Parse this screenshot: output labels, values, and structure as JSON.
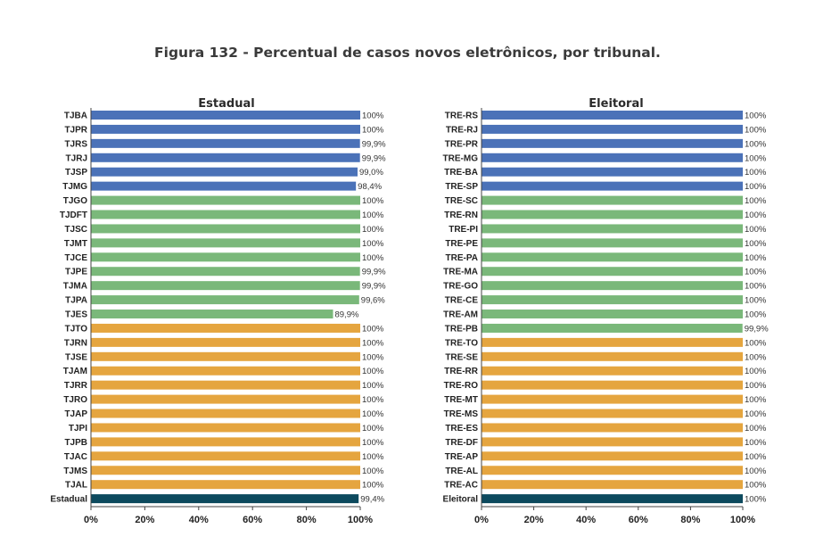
{
  "figure_title": "Figura 132 - Percentual de casos novos eletrônicos, por tribunal.",
  "colors": {
    "blue": "#4b72b8",
    "green": "#7ab87a",
    "orange": "#e5a53f",
    "navy": "#0d4a5e"
  },
  "chart_data": [
    {
      "type": "bar",
      "orientation": "horizontal",
      "title": "Estadual",
      "xlim": [
        0,
        100
      ],
      "xticks": [
        "0%",
        "20%",
        "40%",
        "60%",
        "80%",
        "100%"
      ],
      "grid": false,
      "categories": [
        "TJBA",
        "TJPR",
        "TJRS",
        "TJRJ",
        "TJSP",
        "TJMG",
        "TJGO",
        "TJDFT",
        "TJSC",
        "TJMT",
        "TJCE",
        "TJPE",
        "TJMA",
        "TJPA",
        "TJES",
        "TJTO",
        "TJRN",
        "TJSE",
        "TJAM",
        "TJRR",
        "TJRO",
        "TJAP",
        "TJPI",
        "TJPB",
        "TJAC",
        "TJMS",
        "TJAL",
        "Estadual"
      ],
      "values": [
        100,
        100,
        99.9,
        99.9,
        99.0,
        98.4,
        100,
        100,
        100,
        100,
        100,
        99.9,
        99.9,
        99.6,
        89.9,
        100,
        100,
        100,
        100,
        100,
        100,
        100,
        100,
        100,
        100,
        100,
        100,
        99.4
      ],
      "labels": [
        "100%",
        "100%",
        "99,9%",
        "99,9%",
        "99,0%",
        "98,4%",
        "100%",
        "100%",
        "100%",
        "100%",
        "100%",
        "99,9%",
        "99,9%",
        "99,6%",
        "89,9%",
        "100%",
        "100%",
        "100%",
        "100%",
        "100%",
        "100%",
        "100%",
        "100%",
        "100%",
        "100%",
        "100%",
        "100%",
        "99,4%"
      ],
      "colors": [
        "blue",
        "blue",
        "blue",
        "blue",
        "blue",
        "blue",
        "green",
        "green",
        "green",
        "green",
        "green",
        "green",
        "green",
        "green",
        "green",
        "orange",
        "orange",
        "orange",
        "orange",
        "orange",
        "orange",
        "orange",
        "orange",
        "orange",
        "orange",
        "orange",
        "orange",
        "navy"
      ]
    },
    {
      "type": "bar",
      "orientation": "horizontal",
      "title": "Eleitoral",
      "xlim": [
        0,
        100
      ],
      "xticks": [
        "0%",
        "20%",
        "40%",
        "60%",
        "80%",
        "100%"
      ],
      "grid": false,
      "categories": [
        "TRE-RS",
        "TRE-RJ",
        "TRE-PR",
        "TRE-MG",
        "TRE-BA",
        "TRE-SP",
        "TRE-SC",
        "TRE-RN",
        "TRE-PI",
        "TRE-PE",
        "TRE-PA",
        "TRE-MA",
        "TRE-GO",
        "TRE-CE",
        "TRE-AM",
        "TRE-PB",
        "TRE-TO",
        "TRE-SE",
        "TRE-RR",
        "TRE-RO",
        "TRE-MT",
        "TRE-MS",
        "TRE-ES",
        "TRE-DF",
        "TRE-AP",
        "TRE-AL",
        "TRE-AC",
        "Eleitoral"
      ],
      "values": [
        100,
        100,
        100,
        100,
        100,
        100,
        100,
        100,
        100,
        100,
        100,
        100,
        100,
        100,
        100,
        99.9,
        100,
        100,
        100,
        100,
        100,
        100,
        100,
        100,
        100,
        100,
        100,
        100
      ],
      "labels": [
        "100%",
        "100%",
        "100%",
        "100%",
        "100%",
        "100%",
        "100%",
        "100%",
        "100%",
        "100%",
        "100%",
        "100%",
        "100%",
        "100%",
        "100%",
        "99,9%",
        "100%",
        "100%",
        "100%",
        "100%",
        "100%",
        "100%",
        "100%",
        "100%",
        "100%",
        "100%",
        "100%",
        "100%"
      ],
      "colors": [
        "blue",
        "blue",
        "blue",
        "blue",
        "blue",
        "blue",
        "green",
        "green",
        "green",
        "green",
        "green",
        "green",
        "green",
        "green",
        "green",
        "green",
        "orange",
        "orange",
        "orange",
        "orange",
        "orange",
        "orange",
        "orange",
        "orange",
        "orange",
        "orange",
        "orange",
        "navy"
      ]
    }
  ]
}
